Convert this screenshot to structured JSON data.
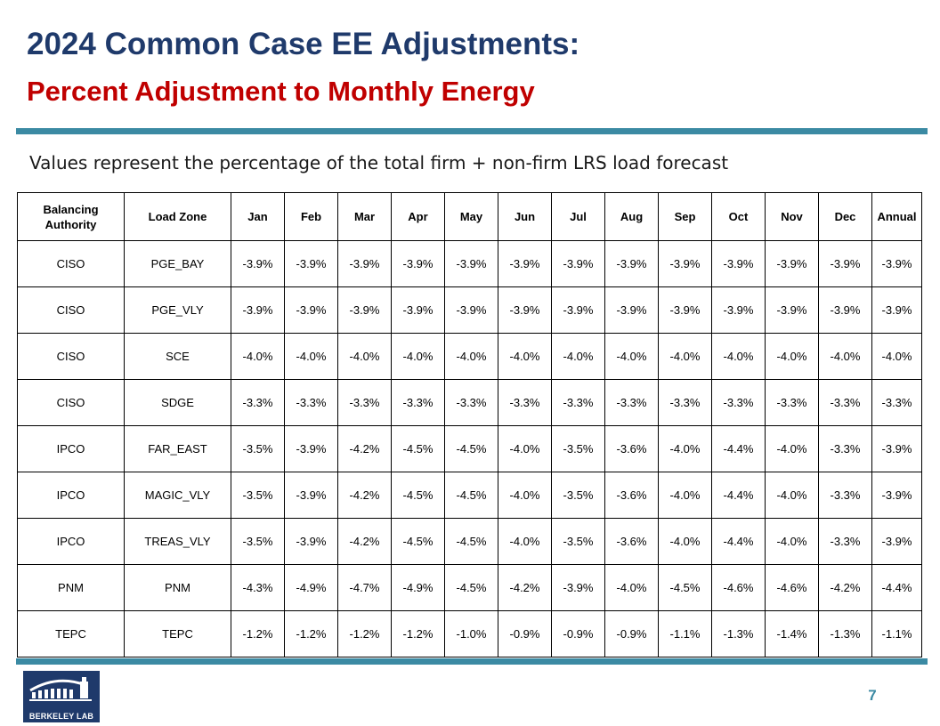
{
  "slide": {
    "title": "2024 Common Case EE Adjustments:",
    "subtitle": "Percent Adjustment to Monthly Energy",
    "note": "Values represent the percentage of the total firm + non-firm LRS load forecast",
    "page_number": "7"
  },
  "logo": {
    "text": "BERKELEY LAB"
  },
  "colors": {
    "title": "#1f3a6b",
    "subtitle": "#c00000",
    "rule": "#3b8aa3",
    "logo_bg": "#1f3a6b"
  },
  "table": {
    "headers": [
      "Balancing Authority",
      "Load Zone",
      "Jan",
      "Feb",
      "Mar",
      "Apr",
      "May",
      "Jun",
      "Jul",
      "Aug",
      "Sep",
      "Oct",
      "Nov",
      "Dec",
      "Annual"
    ],
    "rows": [
      [
        "CISO",
        "PGE_BAY",
        "-3.9%",
        "-3.9%",
        "-3.9%",
        "-3.9%",
        "-3.9%",
        "-3.9%",
        "-3.9%",
        "-3.9%",
        "-3.9%",
        "-3.9%",
        "-3.9%",
        "-3.9%",
        "-3.9%"
      ],
      [
        "CISO",
        "PGE_VLY",
        "-3.9%",
        "-3.9%",
        "-3.9%",
        "-3.9%",
        "-3.9%",
        "-3.9%",
        "-3.9%",
        "-3.9%",
        "-3.9%",
        "-3.9%",
        "-3.9%",
        "-3.9%",
        "-3.9%"
      ],
      [
        "CISO",
        "SCE",
        "-4.0%",
        "-4.0%",
        "-4.0%",
        "-4.0%",
        "-4.0%",
        "-4.0%",
        "-4.0%",
        "-4.0%",
        "-4.0%",
        "-4.0%",
        "-4.0%",
        "-4.0%",
        "-4.0%"
      ],
      [
        "CISO",
        "SDGE",
        "-3.3%",
        "-3.3%",
        "-3.3%",
        "-3.3%",
        "-3.3%",
        "-3.3%",
        "-3.3%",
        "-3.3%",
        "-3.3%",
        "-3.3%",
        "-3.3%",
        "-3.3%",
        "-3.3%"
      ],
      [
        "IPCO",
        "FAR_EAST",
        "-3.5%",
        "-3.9%",
        "-4.2%",
        "-4.5%",
        "-4.5%",
        "-4.0%",
        "-3.5%",
        "-3.6%",
        "-4.0%",
        "-4.4%",
        "-4.0%",
        "-3.3%",
        "-3.9%"
      ],
      [
        "IPCO",
        "MAGIC_VLY",
        "-3.5%",
        "-3.9%",
        "-4.2%",
        "-4.5%",
        "-4.5%",
        "-4.0%",
        "-3.5%",
        "-3.6%",
        "-4.0%",
        "-4.4%",
        "-4.0%",
        "-3.3%",
        "-3.9%"
      ],
      [
        "IPCO",
        "TREAS_VLY",
        "-3.5%",
        "-3.9%",
        "-4.2%",
        "-4.5%",
        "-4.5%",
        "-4.0%",
        "-3.5%",
        "-3.6%",
        "-4.0%",
        "-4.4%",
        "-4.0%",
        "-3.3%",
        "-3.9%"
      ],
      [
        "PNM",
        "PNM",
        "-4.3%",
        "-4.9%",
        "-4.7%",
        "-4.9%",
        "-4.5%",
        "-4.2%",
        "-3.9%",
        "-4.0%",
        "-4.5%",
        "-4.6%",
        "-4.6%",
        "-4.2%",
        "-4.4%"
      ],
      [
        "TEPC",
        "TEPC",
        "-1.2%",
        "-1.2%",
        "-1.2%",
        "-1.2%",
        "-1.0%",
        "-0.9%",
        "-0.9%",
        "-0.9%",
        "-1.1%",
        "-1.3%",
        "-1.4%",
        "-1.3%",
        "-1.1%"
      ]
    ]
  }
}
